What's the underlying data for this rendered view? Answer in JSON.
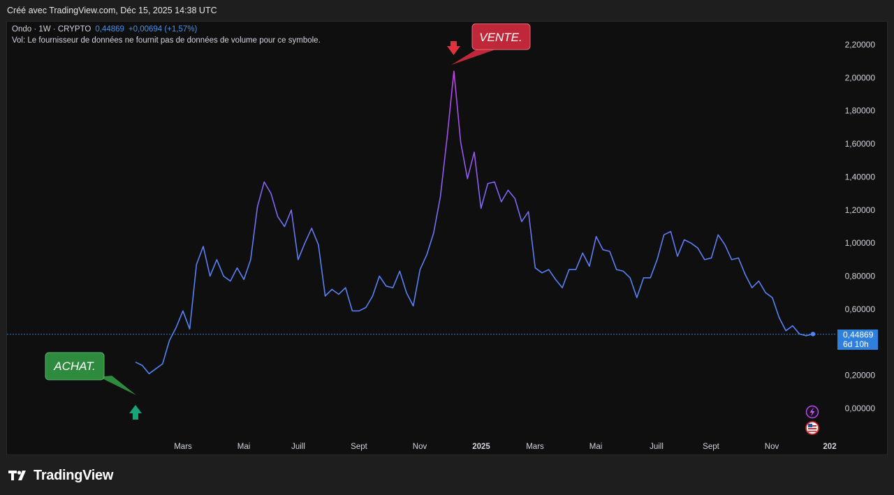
{
  "header": {
    "created_with": "Créé avec TradingView.com, Déc 15, 2025 14:38 UTC"
  },
  "legend": {
    "symbol": "Ondo · 1W · CRYPTO",
    "last_value": "0,44869",
    "change": "+0,00694 (+1,57%)",
    "volume_note": "Vol: Le fournisseur de données ne fournit pas de données de volume pour ce symbole."
  },
  "price_label": {
    "value": "0,44869",
    "countdown": "6d 10h"
  },
  "annotations": {
    "sell": "VENTE.",
    "buy": "ACHAT."
  },
  "brand": {
    "name": "TradingView"
  },
  "colors": {
    "line_blue": "#4f86f7",
    "line_purple": "#b44cf0",
    "sell": "#c0283a",
    "buy": "#2e8b3e",
    "buy_arrow": "#1aa37a",
    "price_label": "#2f7fdc"
  },
  "chart_data": {
    "type": "line",
    "x_tick_labels": [
      "Mars",
      "Mai",
      "Juill",
      "Sept",
      "Nov",
      "2025",
      "Mars",
      "Mai",
      "Juill",
      "Sept",
      "Nov",
      "202"
    ],
    "y_tick_labels": [
      "0,00000",
      "0,20000",
      "0,40000",
      "0,60000",
      "0,80000",
      "1,00000",
      "1,20000",
      "1,40000",
      "1,60000",
      "1,80000",
      "2,00000",
      "2,20000"
    ],
    "ylim": [
      -0.1,
      2.35
    ],
    "current_price": 0.44869,
    "values": [
      0.28,
      0.26,
      0.21,
      0.24,
      0.27,
      0.41,
      0.49,
      0.59,
      0.48,
      0.87,
      0.98,
      0.8,
      0.9,
      0.8,
      0.77,
      0.85,
      0.78,
      0.9,
      1.22,
      1.37,
      1.3,
      1.16,
      1.1,
      1.2,
      0.9,
      1.0,
      1.09,
      0.99,
      0.68,
      0.72,
      0.69,
      0.73,
      0.59,
      0.59,
      0.61,
      0.68,
      0.8,
      0.74,
      0.73,
      0.83,
      0.7,
      0.62,
      0.84,
      0.93,
      1.06,
      1.28,
      1.64,
      2.04,
      1.61,
      1.39,
      1.55,
      1.21,
      1.36,
      1.37,
      1.25,
      1.32,
      1.27,
      1.13,
      1.19,
      0.85,
      0.82,
      0.84,
      0.78,
      0.73,
      0.84,
      0.84,
      0.94,
      0.86,
      1.04,
      0.96,
      0.95,
      0.84,
      0.83,
      0.79,
      0.67,
      0.79,
      0.79,
      0.9,
      1.05,
      1.07,
      0.92,
      1.02,
      1.0,
      0.97,
      0.9,
      0.91,
      1.05,
      0.99,
      0.9,
      0.91,
      0.81,
      0.73,
      0.77,
      0.7,
      0.67,
      0.55,
      0.47,
      0.5,
      0.45,
      0.44,
      0.45
    ],
    "grid": false
  }
}
